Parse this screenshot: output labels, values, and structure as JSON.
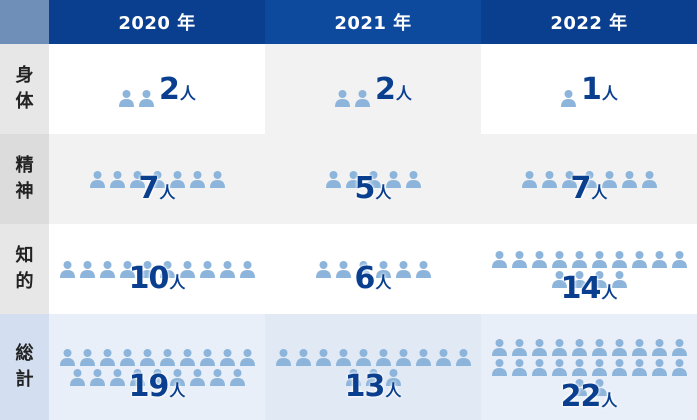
{
  "header": {
    "years": [
      "2020 年",
      "2021 年",
      "2022 年"
    ]
  },
  "rows": [
    {
      "label_chars": [
        "身",
        "体"
      ],
      "values": [
        2,
        2,
        1
      ],
      "counts": [
        "2",
        "2",
        "1"
      ]
    },
    {
      "label_chars": [
        "精",
        "神"
      ],
      "values": [
        7,
        5,
        7
      ],
      "counts": [
        "7",
        "5",
        "7"
      ]
    },
    {
      "label_chars": [
        "知",
        "的"
      ],
      "values": [
        10,
        6,
        14
      ],
      "counts": [
        "10",
        "6",
        "14"
      ]
    },
    {
      "label_chars": [
        "総",
        "計"
      ],
      "values": [
        19,
        13,
        22
      ],
      "counts": [
        "19",
        "13",
        "22"
      ]
    }
  ],
  "unit": "人",
  "colors": {
    "header_blue": "#0a3f8f",
    "person_icon": "#8db5db",
    "count_text": "#0a3f8f"
  },
  "icon": "person-icon"
}
